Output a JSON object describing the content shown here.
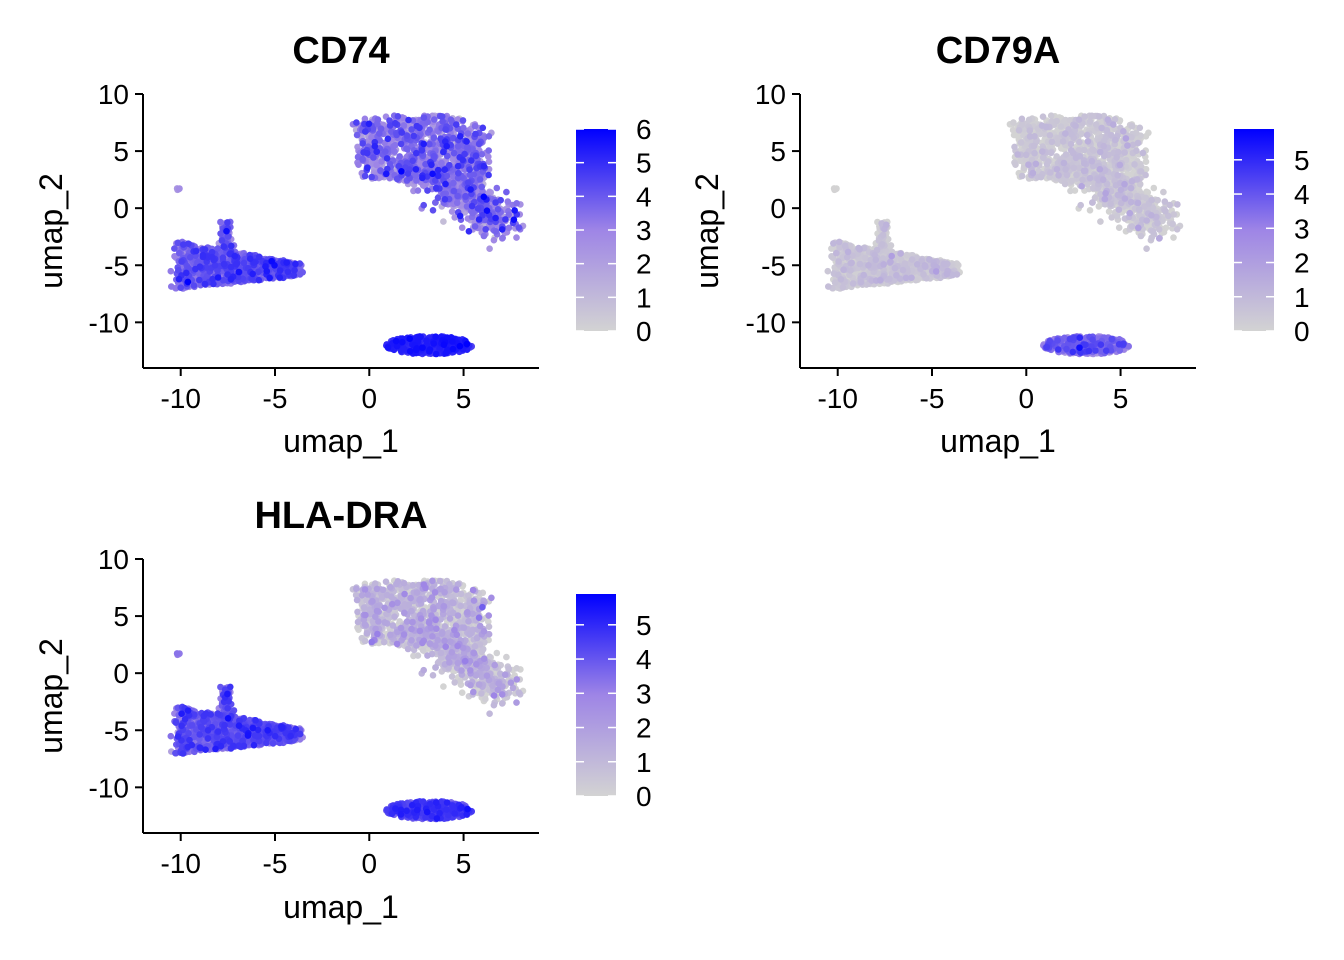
{
  "figure": {
    "color_low": "#D3D3D3",
    "color_high": "#0000FF"
  },
  "chart_data": [
    {
      "type": "scatter",
      "title": "CD74",
      "xlabel": "umap_1",
      "ylabel": "umap_2",
      "xlim": [
        -12,
        9
      ],
      "ylim": [
        -14,
        10
      ],
      "xticks": [
        -10,
        -5,
        0,
        5
      ],
      "yticks": [
        10,
        5,
        0,
        -5,
        -10
      ],
      "legend": {
        "max": 6,
        "ticks": [
          0,
          1,
          2,
          3,
          4,
          5,
          6
        ]
      },
      "clusters": [
        {
          "name": "top-right",
          "expr_mean": 2.9,
          "expr_spread": 1.0
        },
        {
          "name": "left",
          "expr_mean": 3.5,
          "expr_spread": 0.8
        },
        {
          "name": "bottom",
          "expr_mean": 5.0,
          "expr_spread": 0.4
        },
        {
          "name": "outlier",
          "expr_mean": 2.5,
          "expr_spread": 0.3
        }
      ]
    },
    {
      "type": "scatter",
      "title": "CD79A",
      "xlabel": "umap_1",
      "ylabel": "umap_2",
      "xlim": [
        -12,
        9
      ],
      "ylim": [
        -14,
        10
      ],
      "xticks": [
        -10,
        -5,
        0,
        5
      ],
      "yticks": [
        10,
        5,
        0,
        -5,
        -10
      ],
      "legend": {
        "max": 5.9,
        "ticks": [
          0,
          1,
          2,
          3,
          4,
          5
        ]
      },
      "clusters": [
        {
          "name": "top-right",
          "expr_mean": 0.15,
          "expr_spread": 0.5
        },
        {
          "name": "left",
          "expr_mean": 0.15,
          "expr_spread": 0.5
        },
        {
          "name": "bottom",
          "expr_mean": 3.0,
          "expr_spread": 0.8
        },
        {
          "name": "outlier",
          "expr_mean": 0.0,
          "expr_spread": 0.1
        }
      ]
    },
    {
      "type": "scatter",
      "title": "HLA-DRA",
      "xlabel": "umap_1",
      "ylabel": "umap_2",
      "xlim": [
        -12,
        9
      ],
      "ylim": [
        -14,
        10
      ],
      "xticks": [
        -10,
        -5,
        0,
        5
      ],
      "yticks": [
        10,
        5,
        0,
        -5,
        -10
      ],
      "legend": {
        "max": 5.9,
        "ticks": [
          0,
          1,
          2,
          3,
          4,
          5
        ]
      },
      "clusters": [
        {
          "name": "top-right",
          "expr_mean": 0.6,
          "expr_spread": 0.9
        },
        {
          "name": "left",
          "expr_mean": 3.6,
          "expr_spread": 0.7
        },
        {
          "name": "bottom",
          "expr_mean": 4.2,
          "expr_spread": 0.5
        },
        {
          "name": "outlier",
          "expr_mean": 3.0,
          "expr_spread": 0.3
        }
      ]
    }
  ]
}
